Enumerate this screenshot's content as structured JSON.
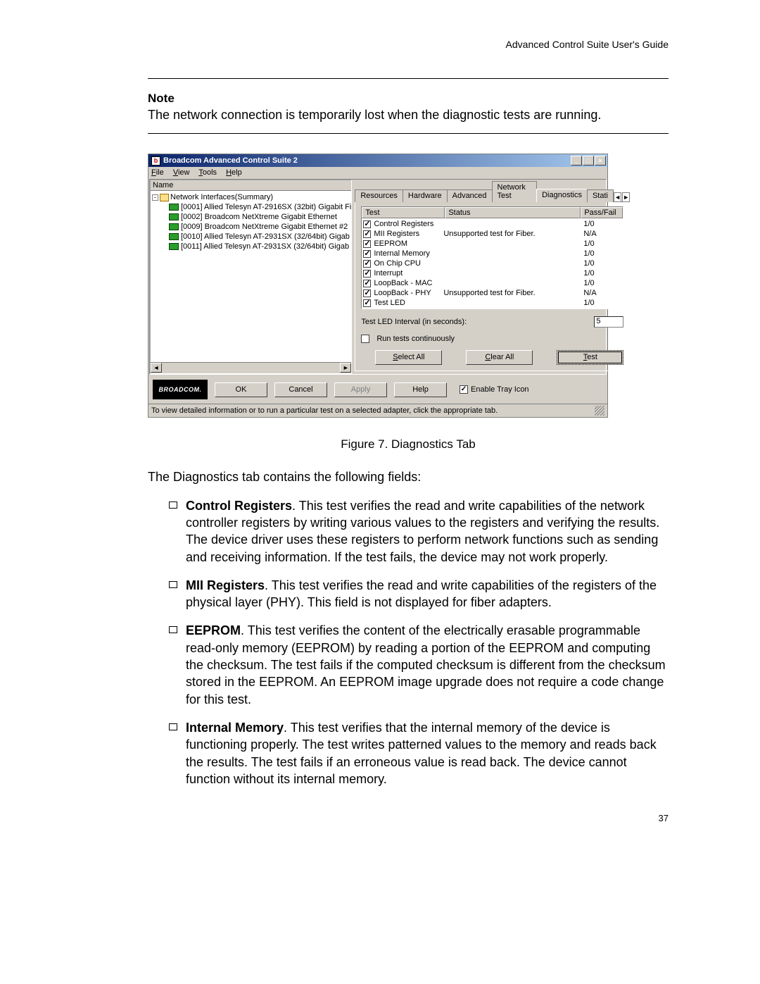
{
  "doc": {
    "header": "Advanced Control Suite User's Guide",
    "note_title": "Note",
    "note_body": "The network connection is temporarily lost when the diagnostic tests are running.",
    "figcaption": "Figure 7. Diagnostics Tab",
    "intro": "The Diagnostics tab contains the following fields:",
    "bullets": [
      {
        "term": "Control Registers",
        "text": ". This test verifies the read and write capabilities of the network controller registers by writing various values to the registers and verifying the results. The device driver uses these registers to perform network functions such as sending and receiving information. If the test fails, the device may not work properly."
      },
      {
        "term": "MII Registers",
        "text": ". This test verifies the read and write capabilities of the registers of the physical layer (PHY). This field is not displayed for fiber adapters."
      },
      {
        "term": "EEPROM",
        "text": ". This test verifies the content of the electrically erasable programmable read-only memory (EEPROM) by reading a portion of the EEPROM and computing the checksum. The test fails if the computed checksum is different from the checksum stored in the EEPROM. An EEPROM image upgrade does not require a code change for this test."
      },
      {
        "term": "Internal Memory",
        "text": ". This test verifies that the internal memory of the device is functioning properly. The test writes patterned values to the memory and reads back the results. The test fails if an erroneous value is read back. The device cannot function without its internal memory."
      }
    ],
    "pagenum": "37"
  },
  "win": {
    "title": "Broadcom Advanced Control Suite 2",
    "menus": [
      "File",
      "View",
      "Tools",
      "Help"
    ],
    "left_header": "Name",
    "tree_root": "Network Interfaces(Summary)",
    "nics": [
      "[0001] Allied Telesyn AT-2916SX (32bit) Gigabit Fi",
      "[0002] Broadcom NetXtreme Gigabit Ethernet",
      "[0009] Broadcom NetXtreme Gigabit Ethernet #2",
      "[0010] Allied Telesyn AT-2931SX (32/64bit) Gigab",
      "[0011] Allied Telesyn AT-2931SX (32/64bit) Gigab"
    ],
    "tabs": [
      "Resources",
      "Hardware",
      "Advanced",
      "Network Test",
      "Diagnostics",
      "Stati"
    ],
    "tab_selected": 4,
    "grid_headers": {
      "c1": "Test",
      "c2": "Status",
      "c3": "Pass/Fail"
    },
    "rows": [
      {
        "name": "Control Registers",
        "status": "",
        "pf": "1/0"
      },
      {
        "name": "MII Registers",
        "status": "Unsupported test for Fiber.",
        "pf": "N/A"
      },
      {
        "name": "EEPROM",
        "status": "",
        "pf": "1/0"
      },
      {
        "name": "Internal Memory",
        "status": "",
        "pf": "1/0"
      },
      {
        "name": "On Chip CPU",
        "status": "",
        "pf": "1/0"
      },
      {
        "name": "Interrupt",
        "status": "",
        "pf": "1/0"
      },
      {
        "name": "LoopBack - MAC",
        "status": "",
        "pf": "1/0"
      },
      {
        "name": "LoopBack - PHY",
        "status": "Unsupported test for Fiber.",
        "pf": "N/A"
      },
      {
        "name": "Test LED",
        "status": "",
        "pf": "1/0"
      }
    ],
    "interval_label": "Test LED Interval (in seconds):",
    "interval_value": "5",
    "run_cont": "Run tests continuously",
    "btns": {
      "selectall": "Select All",
      "clearall": "Clear All",
      "test": "Test"
    },
    "bottom": {
      "ok": "OK",
      "cancel": "Cancel",
      "apply": "Apply",
      "help": "Help",
      "tray": "Enable Tray Icon"
    },
    "logo": "BROADCOM.",
    "status": "To view detailed information or to run a particular test on a selected adapter, click the appropriate tab."
  }
}
